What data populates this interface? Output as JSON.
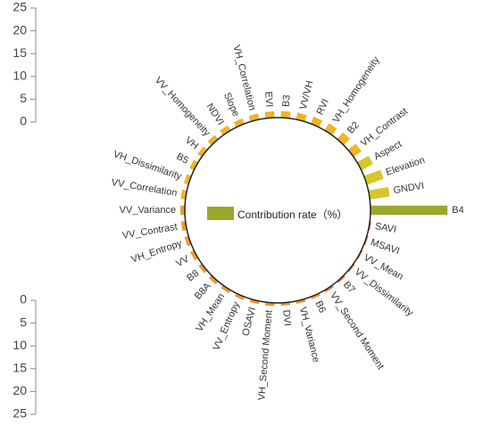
{
  "chart_data": {
    "type": "bar",
    "layout": "radial",
    "legend": "Contribution rate（%）",
    "legend_position": "center",
    "axis_ticks": [
      "0",
      "5",
      "10",
      "15",
      "20",
      "25"
    ],
    "ylim": [
      0,
      25
    ],
    "categories": [
      "B4",
      "SAVI",
      "MSAVI",
      "VV_Mean",
      "VV_Dissimilarity",
      "B7",
      "VV_Second Moment",
      "B6",
      "VH_Variance",
      "DVI",
      "VH_Second Moment",
      "OSAVI",
      "VV_Entropy",
      "VH_Mean",
      "B8A",
      "B8",
      "VV",
      "VH_Entropy",
      "VV_Contrast",
      "VV_Variance",
      "VV_Correlation",
      "VH_Dissimilarity",
      "B5",
      "VH",
      "VV_Homogeneity",
      "NDVI",
      "Slope",
      "VH_Correlation",
      "EVI",
      "B3",
      "VV/VH",
      "RVI",
      "VH_Homogeneity",
      "B2",
      "VH_Contrast",
      "Aspect",
      "Elevation",
      "GNDVI"
    ],
    "values": [
      24.5,
      0.1,
      0.2,
      0.4,
      0.5,
      0.6,
      0.7,
      0.8,
      0.9,
      0.9,
      1.0,
      1.0,
      1.1,
      1.1,
      1.2,
      1.2,
      1.3,
      1.3,
      1.4,
      1.4,
      1.5,
      1.5,
      1.6,
      1.6,
      1.7,
      1.8,
      1.8,
      1.9,
      2.0,
      2.1,
      2.2,
      2.4,
      2.6,
      2.8,
      3.1,
      4.2,
      5.6,
      6.4
    ],
    "colors": {
      "top": "#9aa82a",
      "high": "#d8c62c",
      "mid": "#f0b428",
      "low": "#f19830",
      "lowest": "#e8702a",
      "circle": "#222222",
      "axis": "#888888"
    }
  }
}
